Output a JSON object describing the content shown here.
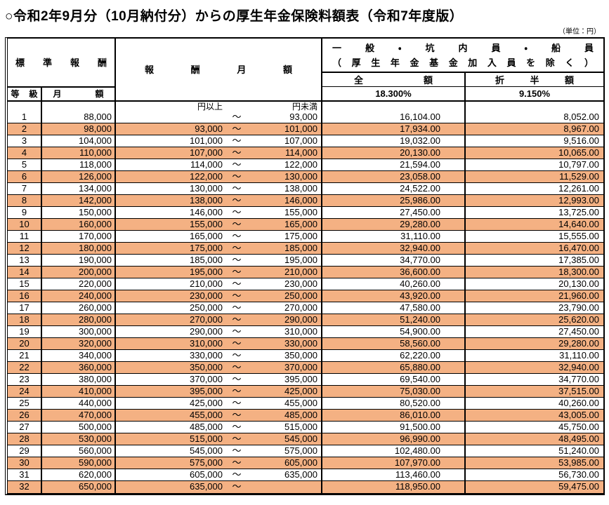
{
  "title": "○令和2年9月分（10月納付分）からの厚生年金保険料額表（令和7年度版）",
  "unit_label": "（単位：円）",
  "table": {
    "headers": {
      "standard_remuneration": "標準報酬",
      "grade": "等級",
      "monthly_amount": "月　額",
      "remuneration_monthly": "報酬月額",
      "category_line1": "一般・坑内員・船員",
      "category_line2": "（厚生年金基金加入員を除く）",
      "full_amount": "全　額",
      "half_amount": "折半額",
      "full_rate": "18.300%",
      "half_rate": "9.150%",
      "yen_or_more": "円以上",
      "yen_less_than": "円未満",
      "tilde": "～"
    },
    "colors": {
      "stripe": "#F4B183"
    },
    "rows": [
      {
        "grade": "1",
        "monthly": "88,000",
        "from": "",
        "to": "93,000",
        "full": "16,104.00",
        "half": "8,052.00",
        "highlight": false
      },
      {
        "grade": "2",
        "monthly": "98,000",
        "from": "93,000",
        "to": "101,000",
        "full": "17,934.00",
        "half": "8,967.00",
        "highlight": true
      },
      {
        "grade": "3",
        "monthly": "104,000",
        "from": "101,000",
        "to": "107,000",
        "full": "19,032.00",
        "half": "9,516.00",
        "highlight": false
      },
      {
        "grade": "4",
        "monthly": "110,000",
        "from": "107,000",
        "to": "114,000",
        "full": "20,130.00",
        "half": "10,065.00",
        "highlight": true
      },
      {
        "grade": "5",
        "monthly": "118,000",
        "from": "114,000",
        "to": "122,000",
        "full": "21,594.00",
        "half": "10,797.00",
        "highlight": false
      },
      {
        "grade": "6",
        "monthly": "126,000",
        "from": "122,000",
        "to": "130,000",
        "full": "23,058.00",
        "half": "11,529.00",
        "highlight": true
      },
      {
        "grade": "7",
        "monthly": "134,000",
        "from": "130,000",
        "to": "138,000",
        "full": "24,522.00",
        "half": "12,261.00",
        "highlight": false
      },
      {
        "grade": "8",
        "monthly": "142,000",
        "from": "138,000",
        "to": "146,000",
        "full": "25,986.00",
        "half": "12,993.00",
        "highlight": true
      },
      {
        "grade": "9",
        "monthly": "150,000",
        "from": "146,000",
        "to": "155,000",
        "full": "27,450.00",
        "half": "13,725.00",
        "highlight": false
      },
      {
        "grade": "10",
        "monthly": "160,000",
        "from": "155,000",
        "to": "165,000",
        "full": "29,280.00",
        "half": "14,640.00",
        "highlight": true
      },
      {
        "grade": "11",
        "monthly": "170,000",
        "from": "165,000",
        "to": "175,000",
        "full": "31,110.00",
        "half": "15,555.00",
        "highlight": false
      },
      {
        "grade": "12",
        "monthly": "180,000",
        "from": "175,000",
        "to": "185,000",
        "full": "32,940.00",
        "half": "16,470.00",
        "highlight": true
      },
      {
        "grade": "13",
        "monthly": "190,000",
        "from": "185,000",
        "to": "195,000",
        "full": "34,770.00",
        "half": "17,385.00",
        "highlight": false
      },
      {
        "grade": "14",
        "monthly": "200,000",
        "from": "195,000",
        "to": "210,000",
        "full": "36,600.00",
        "half": "18,300.00",
        "highlight": true
      },
      {
        "grade": "15",
        "monthly": "220,000",
        "from": "210,000",
        "to": "230,000",
        "full": "40,260.00",
        "half": "20,130.00",
        "highlight": false
      },
      {
        "grade": "16",
        "monthly": "240,000",
        "from": "230,000",
        "to": "250,000",
        "full": "43,920.00",
        "half": "21,960.00",
        "highlight": true
      },
      {
        "grade": "17",
        "monthly": "260,000",
        "from": "250,000",
        "to": "270,000",
        "full": "47,580.00",
        "half": "23,790.00",
        "highlight": false
      },
      {
        "grade": "18",
        "monthly": "280,000",
        "from": "270,000",
        "to": "290,000",
        "full": "51,240.00",
        "half": "25,620.00",
        "highlight": true
      },
      {
        "grade": "19",
        "monthly": "300,000",
        "from": "290,000",
        "to": "310,000",
        "full": "54,900.00",
        "half": "27,450.00",
        "highlight": false
      },
      {
        "grade": "20",
        "monthly": "320,000",
        "from": "310,000",
        "to": "330,000",
        "full": "58,560.00",
        "half": "29,280.00",
        "highlight": true
      },
      {
        "grade": "21",
        "monthly": "340,000",
        "from": "330,000",
        "to": "350,000",
        "full": "62,220.00",
        "half": "31,110.00",
        "highlight": false
      },
      {
        "grade": "22",
        "monthly": "360,000",
        "from": "350,000",
        "to": "370,000",
        "full": "65,880.00",
        "half": "32,940.00",
        "highlight": true
      },
      {
        "grade": "23",
        "monthly": "380,000",
        "from": "370,000",
        "to": "395,000",
        "full": "69,540.00",
        "half": "34,770.00",
        "highlight": false
      },
      {
        "grade": "24",
        "monthly": "410,000",
        "from": "395,000",
        "to": "425,000",
        "full": "75,030.00",
        "half": "37,515.00",
        "highlight": true
      },
      {
        "grade": "25",
        "monthly": "440,000",
        "from": "425,000",
        "to": "455,000",
        "full": "80,520.00",
        "half": "40,260.00",
        "highlight": false
      },
      {
        "grade": "26",
        "monthly": "470,000",
        "from": "455,000",
        "to": "485,000",
        "full": "86,010.00",
        "half": "43,005.00",
        "highlight": true
      },
      {
        "grade": "27",
        "monthly": "500,000",
        "from": "485,000",
        "to": "515,000",
        "full": "91,500.00",
        "half": "45,750.00",
        "highlight": false
      },
      {
        "grade": "28",
        "monthly": "530,000",
        "from": "515,000",
        "to": "545,000",
        "full": "96,990.00",
        "half": "48,495.00",
        "highlight": true
      },
      {
        "grade": "29",
        "monthly": "560,000",
        "from": "545,000",
        "to": "575,000",
        "full": "102,480.00",
        "half": "51,240.00",
        "highlight": false
      },
      {
        "grade": "30",
        "monthly": "590,000",
        "from": "575,000",
        "to": "605,000",
        "full": "107,970.00",
        "half": "53,985.00",
        "highlight": true
      },
      {
        "grade": "31",
        "monthly": "620,000",
        "from": "605,000",
        "to": "635,000",
        "full": "113,460.00",
        "half": "56,730.00",
        "highlight": false
      },
      {
        "grade": "32",
        "monthly": "650,000",
        "from": "635,000",
        "to": "",
        "full": "118,950.00",
        "half": "59,475.00",
        "highlight": true
      }
    ]
  }
}
